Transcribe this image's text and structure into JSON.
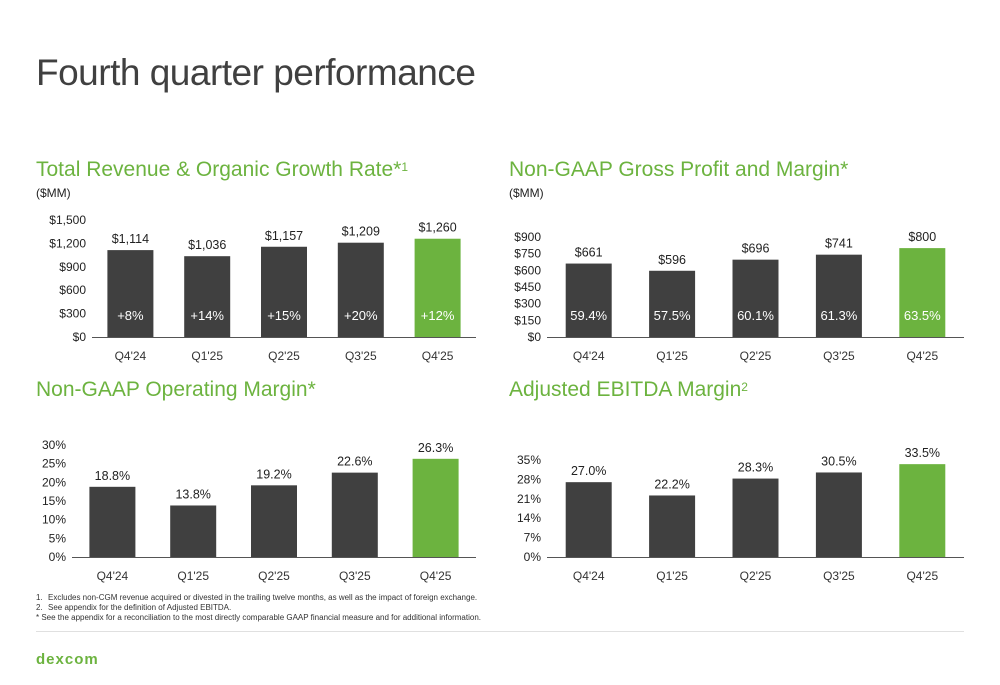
{
  "page_title": "Fourth quarter performance",
  "colors": {
    "accent": "#6cb33f",
    "bar_dark": "#404040",
    "axis": "#222222"
  },
  "chart_data": [
    {
      "type": "bar",
      "title": "Total Revenue & Organic Growth Rate*",
      "title_sup": "1",
      "unit": "($MM)",
      "categories": [
        "Q4'24",
        "Q1'25",
        "Q2'25",
        "Q3'25",
        "Q4'25"
      ],
      "values": [
        1114,
        1036,
        1157,
        1209,
        1260
      ],
      "value_labels": [
        "$1,114",
        "$1,036",
        "$1,157",
        "$1,209",
        "$1,260"
      ],
      "inner_labels": [
        "+8%",
        "+14%",
        "+15%",
        "+20%",
        "+12%"
      ],
      "ylim": [
        0,
        1500
      ],
      "yticks": [
        0,
        300,
        600,
        900,
        1200,
        1500
      ],
      "ytick_labels": [
        "$0",
        "$300",
        "$600",
        "$900",
        "$1,200",
        "$1,500"
      ],
      "highlight_index": 4
    },
    {
      "type": "bar",
      "title": "Non-GAAP Gross Profit and Margin*",
      "title_sup": "",
      "unit": "($MM)",
      "categories": [
        "Q4'24",
        "Q1'25",
        "Q2'25",
        "Q3'25",
        "Q4'25"
      ],
      "values": [
        661,
        596,
        696,
        741,
        800
      ],
      "value_labels": [
        "$661",
        "$596",
        "$696",
        "$741",
        "$800"
      ],
      "inner_labels": [
        "59.4%",
        "57.5%",
        "60.1%",
        "61.3%",
        "63.5%"
      ],
      "ylim": [
        0,
        900
      ],
      "yticks": [
        0,
        150,
        300,
        450,
        600,
        750,
        900
      ],
      "ytick_labels": [
        "$0",
        "$150",
        "$300",
        "$450",
        "$600",
        "$750",
        "$900"
      ],
      "highlight_index": 4
    },
    {
      "type": "bar",
      "title": "Non-GAAP Operating Margin*",
      "title_sup": "",
      "unit": "",
      "categories": [
        "Q4'24",
        "Q1'25",
        "Q2'25",
        "Q3'25",
        "Q4'25"
      ],
      "values": [
        18.8,
        13.8,
        19.2,
        22.6,
        26.3
      ],
      "value_labels": [
        "18.8%",
        "13.8%",
        "19.2%",
        "22.6%",
        "26.3%"
      ],
      "inner_labels": [],
      "ylim": [
        0,
        30
      ],
      "yticks": [
        0,
        5,
        10,
        15,
        20,
        25,
        30
      ],
      "ytick_labels": [
        "0%",
        "5%",
        "10%",
        "15%",
        "20%",
        "25%",
        "30%"
      ],
      "highlight_index": 4
    },
    {
      "type": "bar",
      "title": "Adjusted EBITDA Margin",
      "title_sup": "2",
      "unit": "",
      "categories": [
        "Q4'24",
        "Q1'25",
        "Q2'25",
        "Q3'25",
        "Q4'25"
      ],
      "values": [
        27.0,
        22.2,
        28.3,
        30.5,
        33.5
      ],
      "value_labels": [
        "27.0%",
        "22.2%",
        "28.3%",
        "30.5%",
        "33.5%"
      ],
      "inner_labels": [],
      "ylim": [
        0,
        35
      ],
      "yticks": [
        0,
        7,
        14,
        21,
        28,
        35
      ],
      "ytick_labels": [
        "0%",
        "7%",
        "14%",
        "21%",
        "28%",
        "35%"
      ],
      "highlight_index": 4
    }
  ],
  "footnotes": [
    {
      "num": "1.",
      "text": "Excludes non-CGM revenue acquired or divested in the trailing twelve months, as well as the impact of foreign exchange."
    },
    {
      "num": "2.",
      "text": "See appendix for the definition of Adjusted EBITDA."
    }
  ],
  "footnote_star": "* See the appendix for a reconciliation to the most directly comparable GAAP financial measure and for additional information.",
  "logo": "dexcom"
}
